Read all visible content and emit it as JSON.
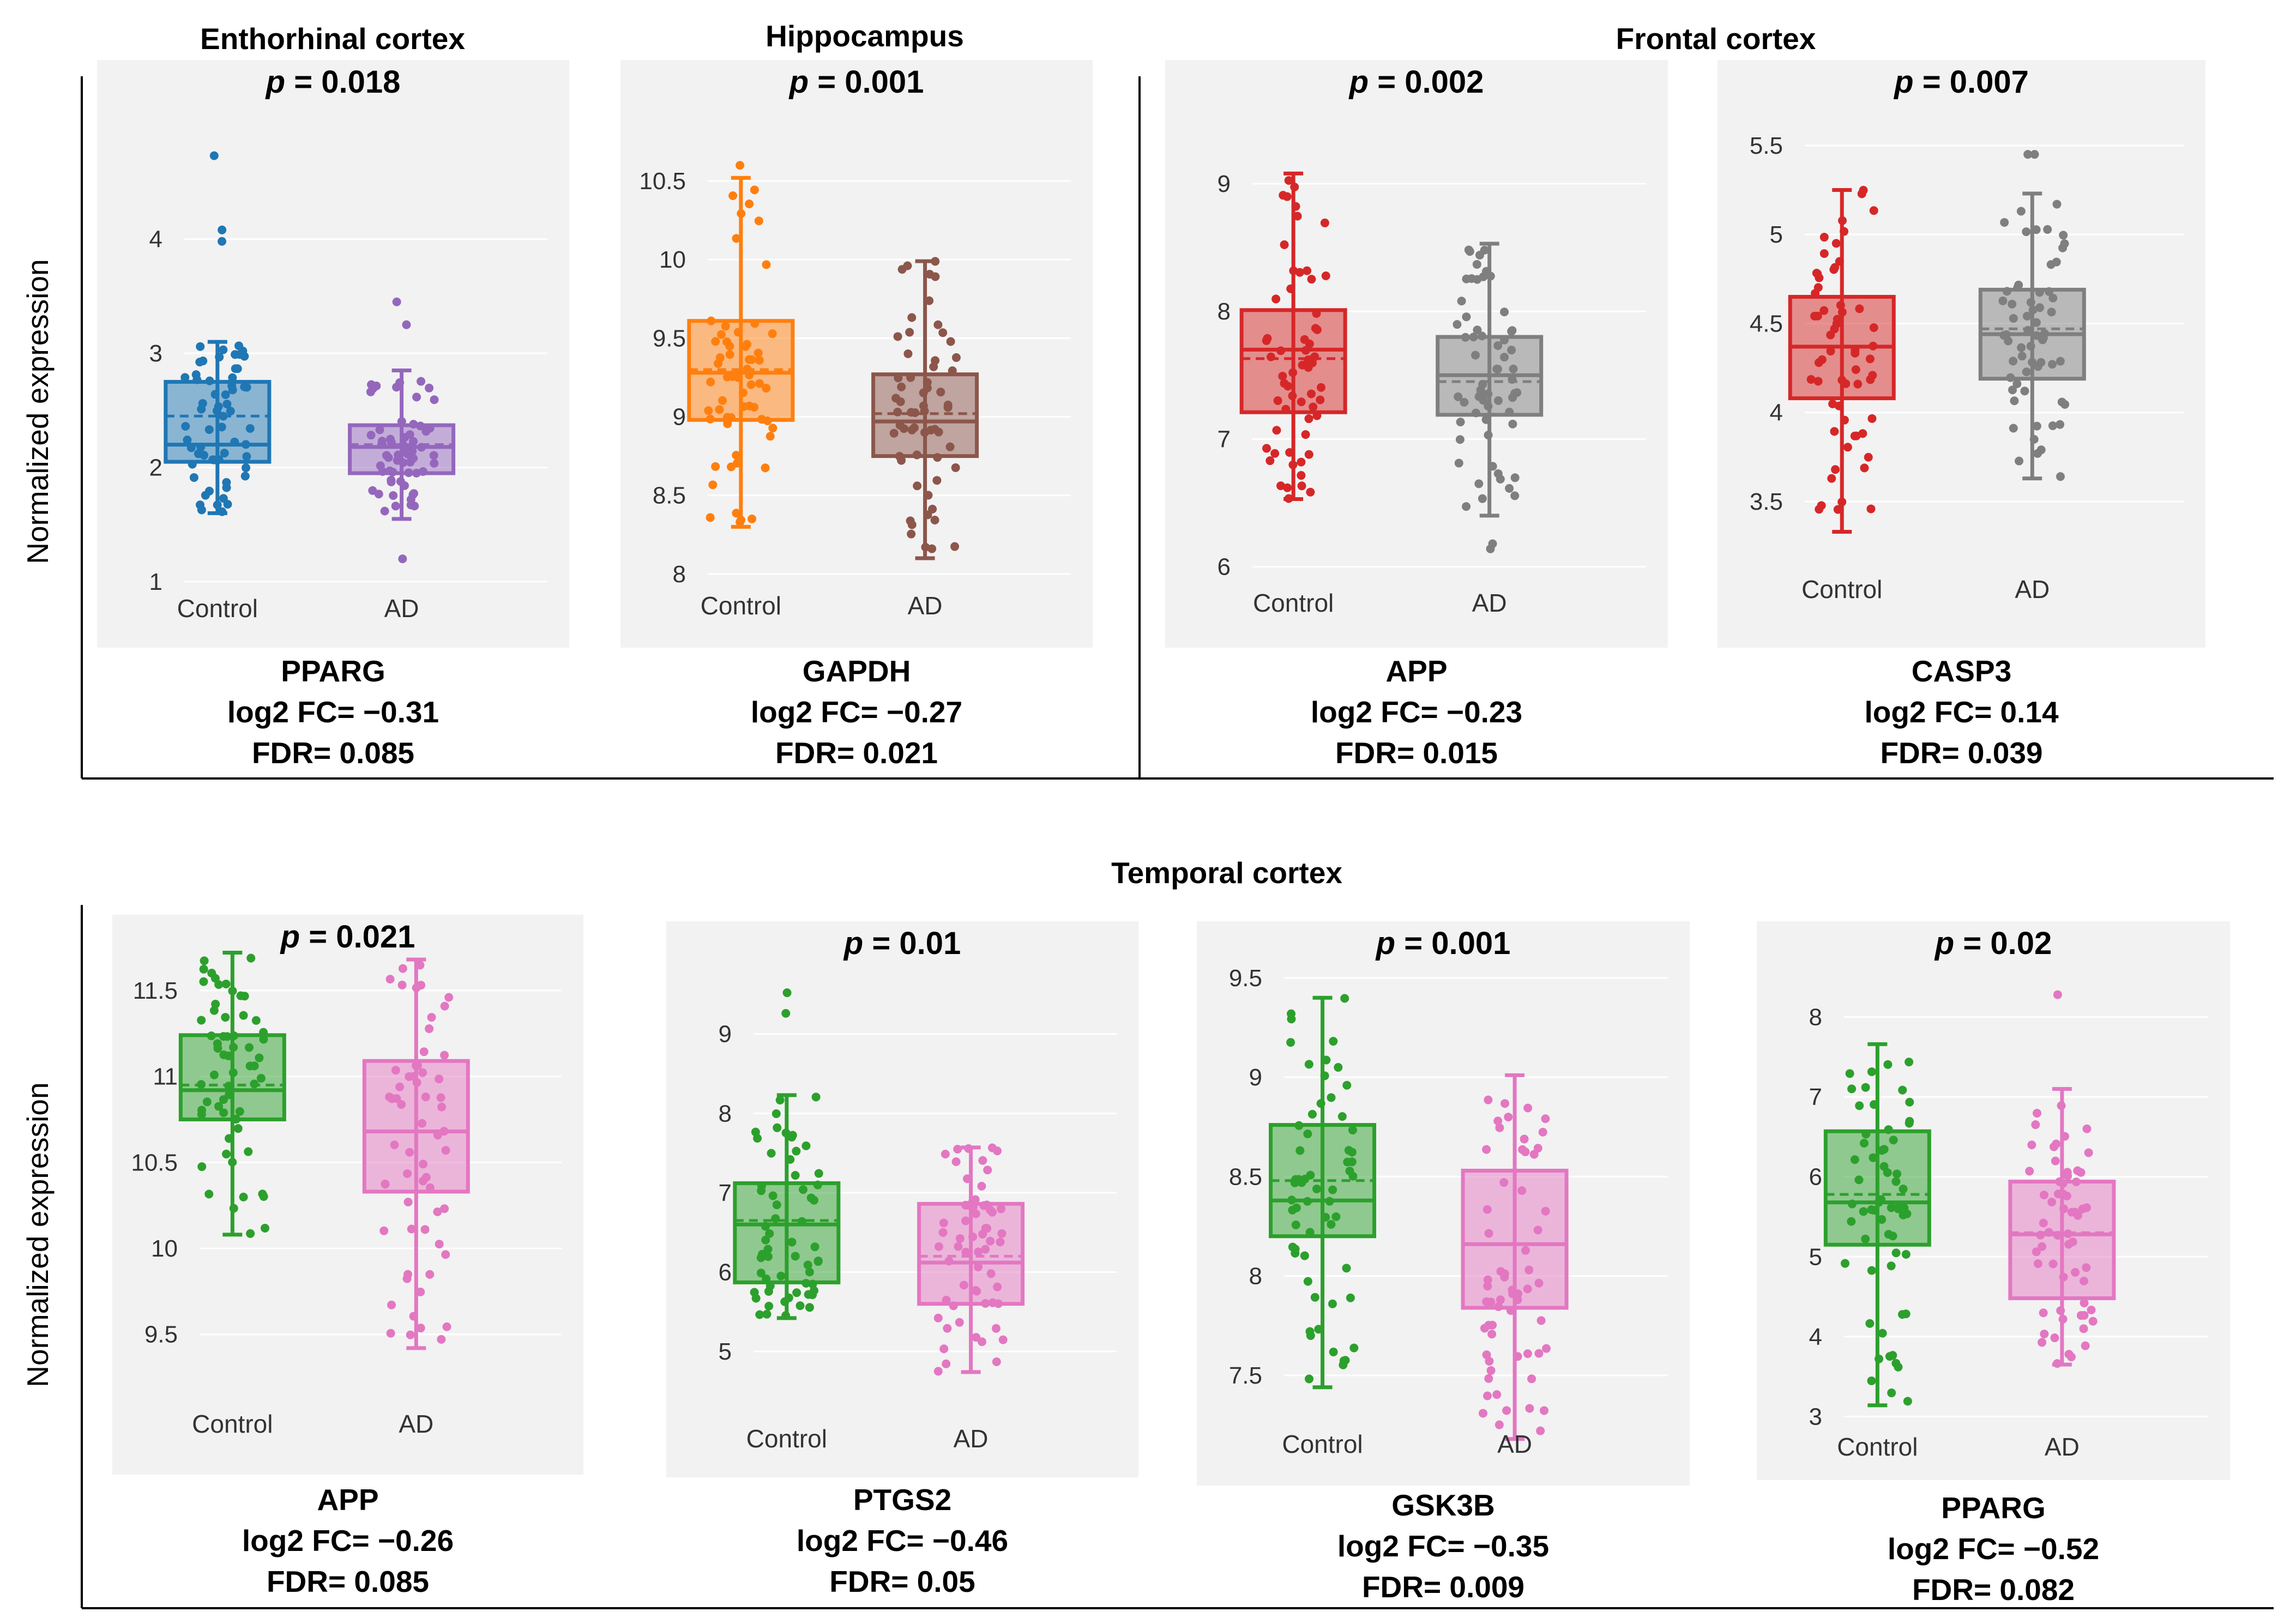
{
  "figure": {
    "y_axis_label": "Normalized expression",
    "region_titles": [
      "Enthorhinal cortex",
      "Hippocampus",
      "Frontal cortex",
      "Temporal cortex"
    ],
    "p_prefix": "p",
    "fc_prefix": "log2 FC= ",
    "fdr_prefix": "FDR= "
  },
  "chart_data": [
    {
      "type": "box",
      "region": "Enthorhinal cortex",
      "gene": "PPARG",
      "p": "0.018",
      "log2fc": "−0.31",
      "fdr": "0.085",
      "categories": [
        "Control",
        "AD"
      ],
      "ylim": [
        0.9,
        4.9
      ],
      "yticks": [
        1,
        2,
        3,
        4
      ],
      "tick_labels": [
        "1",
        "2",
        "3",
        "4"
      ],
      "colors": [
        "#1f77b4",
        "#9467bd"
      ],
      "series": [
        {
          "name": "Control",
          "min": 1.6,
          "q1": 2.05,
          "median": 2.2,
          "mean": 2.45,
          "q3": 2.75,
          "max": 3.1,
          "outliers": [
            3.98,
            4.08,
            4.73
          ]
        },
        {
          "name": "AD",
          "min": 1.55,
          "q1": 1.95,
          "median": 2.18,
          "mean": 2.2,
          "q3": 2.37,
          "max": 2.85,
          "outliers": [
            1.2,
            3.25,
            3.45
          ]
        }
      ]
    },
    {
      "type": "box",
      "region": "Hippocampus",
      "gene": "GAPDH",
      "p": "0.001",
      "log2fc": "−0.27",
      "fdr": "0.021",
      "categories": [
        "Control",
        "AD"
      ],
      "ylim": [
        7.93,
        10.75
      ],
      "yticks": [
        8,
        8.5,
        9,
        9.5,
        10,
        10.5
      ],
      "tick_labels": [
        "8",
        "8.5",
        "9",
        "9.5",
        "10",
        "10.5"
      ],
      "colors": [
        "#ff7f0e",
        "#8c564b"
      ],
      "series": [
        {
          "name": "Control",
          "min": 8.3,
          "q1": 8.98,
          "median": 9.28,
          "mean": 9.3,
          "q3": 9.61,
          "max": 10.52,
          "outliers": [
            10.6
          ]
        },
        {
          "name": "AD",
          "min": 8.1,
          "q1": 8.75,
          "median": 8.97,
          "mean": 9.02,
          "q3": 9.27,
          "max": 9.99,
          "outliers": []
        }
      ]
    },
    {
      "type": "box",
      "region": "Frontal cortex",
      "gene": "APP",
      "p": "0.002",
      "log2fc": "−0.23",
      "fdr": "0.015",
      "categories": [
        "Control",
        "AD"
      ],
      "ylim": [
        5.9,
        9.35
      ],
      "yticks": [
        6,
        7,
        8,
        9
      ],
      "tick_labels": [
        "6",
        "7",
        "8",
        "9"
      ],
      "colors": [
        "#d62728",
        "#7f7f7f"
      ],
      "series": [
        {
          "name": "Control",
          "min": 6.53,
          "q1": 7.21,
          "median": 7.7,
          "mean": 7.63,
          "q3": 8.01,
          "max": 9.08,
          "outliers": []
        },
        {
          "name": "AD",
          "min": 6.4,
          "q1": 7.19,
          "median": 7.5,
          "mean": 7.45,
          "q3": 7.8,
          "max": 8.53,
          "outliers": [
            6.14,
            6.18
          ]
        }
      ]
    },
    {
      "type": "box",
      "region": "Frontal cortex",
      "gene": "CASP3",
      "p": "0.007",
      "log2fc": "0.14",
      "fdr": "0.039",
      "categories": [
        "Control",
        "AD"
      ],
      "ylim": [
        3.2,
        5.72
      ],
      "yticks": [
        3.5,
        4,
        4.5,
        5,
        5.5
      ],
      "tick_labels": [
        "3.5",
        "4",
        "4.5",
        "5",
        "5.5"
      ],
      "colors": [
        "#d62728",
        "#7f7f7f"
      ],
      "series": [
        {
          "name": "Control",
          "min": 3.33,
          "q1": 4.08,
          "median": 4.37,
          "mean": 4.37,
          "q3": 4.65,
          "max": 5.25,
          "outliers": []
        },
        {
          "name": "AD",
          "min": 3.63,
          "q1": 4.19,
          "median": 4.44,
          "mean": 4.47,
          "q3": 4.69,
          "max": 5.23,
          "outliers": [
            5.45,
            5.45
          ]
        }
      ]
    },
    {
      "type": "box",
      "region": "Temporal cortex",
      "gene": "APP",
      "p": "0.021",
      "log2fc": "−0.26",
      "fdr": "0.085",
      "categories": [
        "Control",
        "AD"
      ],
      "ylim": [
        9.35,
        11.75
      ],
      "yticks": [
        9.5,
        10,
        10.5,
        11,
        11.5
      ],
      "tick_labels": [
        "9.5",
        "10",
        "10.5",
        "11",
        "11.5"
      ],
      "colors": [
        "#2ca02c",
        "#e377c2"
      ],
      "series": [
        {
          "name": "Control",
          "min": 10.08,
          "q1": 10.75,
          "median": 10.92,
          "mean": 10.95,
          "q3": 11.24,
          "max": 11.72,
          "outliers": []
        },
        {
          "name": "AD",
          "min": 9.42,
          "q1": 10.33,
          "median": 10.68,
          "mean": 10.68,
          "q3": 11.09,
          "max": 11.68,
          "outliers": []
        }
      ]
    },
    {
      "type": "box",
      "region": "Temporal cortex",
      "gene": "PTGS2",
      "p": "0.01",
      "log2fc": "−0.46",
      "fdr": "0.05",
      "categories": [
        "Control",
        "AD"
      ],
      "ylim": [
        4.65,
        9.85
      ],
      "yticks": [
        5,
        6,
        7,
        8,
        9
      ],
      "tick_labels": [
        "5",
        "6",
        "7",
        "8",
        "9"
      ],
      "colors": [
        "#2ca02c",
        "#e377c2"
      ],
      "series": [
        {
          "name": "Control",
          "min": 5.42,
          "q1": 5.87,
          "median": 6.6,
          "mean": 6.65,
          "q3": 7.12,
          "max": 8.23,
          "outliers": [
            9.26,
            9.52
          ]
        },
        {
          "name": "AD",
          "min": 4.74,
          "q1": 5.6,
          "median": 6.12,
          "mean": 6.2,
          "q3": 6.86,
          "max": 7.57,
          "outliers": []
        }
      ]
    },
    {
      "type": "box",
      "region": "Temporal cortex",
      "gene": "GSK3B",
      "p": "0.001",
      "log2fc": "−0.35",
      "fdr": "0.009",
      "categories": [
        "Control",
        "AD"
      ],
      "ylim": [
        7.22,
        9.62
      ],
      "yticks": [
        7.5,
        8,
        8.5,
        9,
        9.5
      ],
      "tick_labels": [
        "7.5",
        "8",
        "8.5",
        "9",
        "9.5"
      ],
      "colors": [
        "#2ca02c",
        "#e377c2"
      ],
      "series": [
        {
          "name": "Control",
          "min": 7.44,
          "q1": 8.2,
          "median": 8.38,
          "mean": 8.48,
          "q3": 8.76,
          "max": 9.4,
          "outliers": []
        },
        {
          "name": "AD",
          "min": 7.18,
          "q1": 7.84,
          "median": 8.16,
          "mean": 8.16,
          "q3": 8.53,
          "max": 9.01,
          "outliers": []
        }
      ]
    },
    {
      "type": "box",
      "region": "Temporal cortex",
      "gene": "PPARG",
      "p": "0.02",
      "log2fc": "−0.52",
      "fdr": "0.082",
      "categories": [
        "Control",
        "AD"
      ],
      "ylim": [
        2.75,
        8.55
      ],
      "yticks": [
        3,
        4,
        5,
        6,
        7,
        8
      ],
      "tick_labels": [
        "3",
        "4",
        "5",
        "6",
        "7",
        "8"
      ],
      "colors": [
        "#2ca02c",
        "#e377c2"
      ],
      "series": [
        {
          "name": "Control",
          "min": 3.14,
          "q1": 5.15,
          "median": 5.68,
          "mean": 5.78,
          "q3": 6.57,
          "max": 7.66,
          "outliers": []
        },
        {
          "name": "AD",
          "min": 3.65,
          "q1": 4.48,
          "median": 5.28,
          "mean": 5.3,
          "q3": 5.94,
          "max": 7.1,
          "outliers": [
            8.28
          ]
        }
      ]
    }
  ]
}
